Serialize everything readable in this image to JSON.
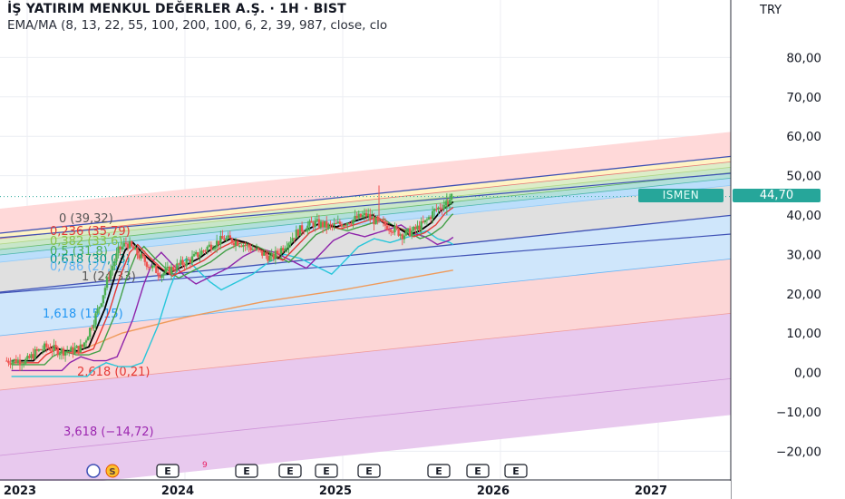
{
  "header": {
    "title": "İŞ YATIRIM MENKUL DEĞERLER A.Ş. · 1H · BIST",
    "indicator": "EMA/MA (8, 13, 22, 55, 100, 200, 100, 6, 2, 39, 987, close, clo"
  },
  "currency": "TRY",
  "symbol": "ISMEN",
  "last_price": "44,70",
  "colors": {
    "up": "#4caf50",
    "down": "#ef5350",
    "channel": "#3f51b5",
    "ema8": "#000000",
    "ema13": "#e53935",
    "ema22": "#43a047",
    "ema55": "#8e24aa",
    "ema100": "#26c6da",
    "ma200": "#ef9a5a",
    "price_tag": "#26a69a"
  },
  "chart_data": {
    "type": "candlestick",
    "title": "İŞ YATIRIM MENKUL DEĞERLER A.Ş. · 1H · BIST",
    "y_axis": {
      "ticks": [
        80,
        70,
        60,
        50,
        40,
        30,
        20,
        10,
        0,
        -10,
        -20
      ],
      "tick_labels": [
        "80,00",
        "70,00",
        "60,00",
        "50,00",
        "40,00",
        "30,00",
        "20,00",
        "10,00",
        "0,00",
        "−10,00",
        "−20,00"
      ],
      "unit": "TRY"
    },
    "x_axis": {
      "ticks": [
        2023,
        2024,
        2025,
        2026,
        2027
      ],
      "tick_labels": [
        "2023",
        "2024",
        "2025",
        "2026",
        "2027"
      ]
    },
    "close_series": [
      [
        2023.0,
        3
      ],
      [
        2023.05,
        5
      ],
      [
        2023.12,
        6.5
      ],
      [
        2023.2,
        5.5
      ],
      [
        2023.28,
        5.5
      ],
      [
        2023.35,
        6.5
      ],
      [
        2023.45,
        16
      ],
      [
        2023.52,
        25
      ],
      [
        2023.58,
        31
      ],
      [
        2023.63,
        33
      ],
      [
        2023.7,
        30
      ],
      [
        2023.78,
        27
      ],
      [
        2023.85,
        25
      ],
      [
        2023.95,
        27
      ],
      [
        2024.05,
        29
      ],
      [
        2024.15,
        32
      ],
      [
        2024.25,
        34
      ],
      [
        2024.35,
        33
      ],
      [
        2024.45,
        31
      ],
      [
        2024.55,
        29
      ],
      [
        2024.6,
        31
      ],
      [
        2024.72,
        36
      ],
      [
        2024.82,
        38
      ],
      [
        2024.92,
        37
      ],
      [
        2025.0,
        38
      ],
      [
        2025.08,
        39
      ],
      [
        2025.15,
        40
      ],
      [
        2025.22,
        38
      ],
      [
        2025.3,
        37
      ],
      [
        2025.38,
        35
      ],
      [
        2025.45,
        36
      ],
      [
        2025.52,
        38
      ],
      [
        2025.58,
        41
      ],
      [
        2025.65,
        43
      ],
      [
        2025.7,
        44.7
      ]
    ],
    "indicators": [
      {
        "name": "EMA 8",
        "color": "#000000",
        "lag": 0.04,
        "offset": 0
      },
      {
        "name": "EMA 13",
        "color": "#e53935",
        "lag": 0.07,
        "offset": -0.5
      },
      {
        "name": "EMA 22",
        "color": "#43a047",
        "lag": 0.11,
        "offset": -1
      },
      {
        "name": "EMA 55",
        "color": "#8e24aa",
        "lag": 0.22,
        "offset": -2.5
      },
      {
        "name": "EMA 100",
        "color": "#26c6da",
        "lag": 0.38,
        "offset": -4
      }
    ],
    "ma200": [
      [
        2023.3,
        5
      ],
      [
        2023.6,
        10
      ],
      [
        2024.0,
        14
      ],
      [
        2024.5,
        18
      ],
      [
        2025.0,
        21
      ],
      [
        2025.7,
        26
      ]
    ],
    "fib_levels": [
      {
        "ratio": "0",
        "label": "0 (39,32)",
        "color": "#555555"
      },
      {
        "ratio": "0.236",
        "label": "0,236 (35,79)",
        "color": "#e53935"
      },
      {
        "ratio": "0.382",
        "label": "0,382 (33,6)",
        "color": "#8bc34a"
      },
      {
        "ratio": "0.5",
        "label": "0,5 (31,8)",
        "color": "#4caf50"
      },
      {
        "ratio": "0.618",
        "label": "0,618 (30,03)",
        "color": "#009688"
      },
      {
        "ratio": "0.786",
        "label": "0,786 (27,52)",
        "color": "#64b5f6"
      },
      {
        "ratio": "1",
        "label": "1 (24,33)",
        "color": "#555555"
      },
      {
        "ratio": "1.618",
        "label": "1,618 (15,15)",
        "color": "#2196f3"
      },
      {
        "ratio": "2.618",
        "label": "2,618 (0,21)",
        "color": "#e53935"
      },
      {
        "ratio": "3.618",
        "label": "3,618 (−14,72)",
        "color": "#9c27b0"
      }
    ],
    "events": [
      {
        "label": "E"
      },
      {
        "label": "9"
      },
      {
        "label": "E"
      },
      {
        "label": "E"
      },
      {
        "label": "E"
      },
      {
        "label": "E"
      },
      {
        "label": "E"
      },
      {
        "label": "E"
      },
      {
        "label": "E"
      }
    ],
    "last_price": 44.7
  }
}
